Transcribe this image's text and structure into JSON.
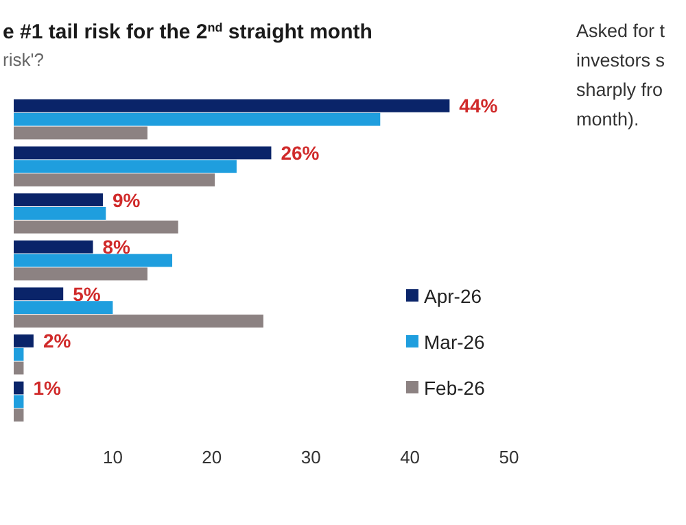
{
  "chart_data": {
    "type": "bar",
    "orientation": "horizontal",
    "title": "e #1 tail risk for the 2$^{nd}$ straight month",
    "subtitle": "risk'?",
    "annotations": [
      "Asked for t\ninvestors s\nsharply fro\nmonth)."
    ],
    "categories": [
      null,
      null,
      null,
      null,
      null,
      null,
      null
    ],
    "series": [
      {
        "name": "Apr-26",
        "color": "#0a2469",
        "values": [
          44,
          26,
          9,
          8,
          5,
          2,
          1
        ],
        "value_labels": [
          "44%",
          "26%",
          "9%",
          "8%",
          "5%",
          "2%",
          "1%"
        ]
      },
      {
        "name": "Mar-26",
        "color": "#1f9ede",
        "values": [
          37,
          22.5,
          9.3,
          16,
          10,
          1,
          1
        ]
      },
      {
        "name": "Feb-26",
        "color": "#8c8282",
        "values": [
          13.5,
          20.3,
          16.6,
          13.5,
          25.2,
          1,
          1
        ]
      }
    ],
    "xlim": [
      0,
      50
    ],
    "xticks": [
      10,
      20,
      30,
      40,
      50
    ],
    "grid": false,
    "legend": "bottom right"
  }
}
